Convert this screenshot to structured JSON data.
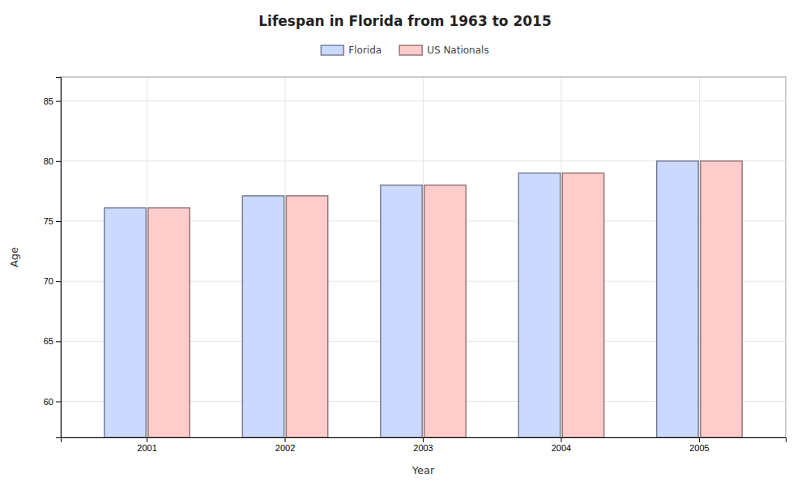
{
  "chart_data": {
    "type": "bar",
    "title": "Lifespan in Florida from 1963 to 2015",
    "xlabel": "Year",
    "ylabel": "Age",
    "categories": [
      "2001",
      "2002",
      "2003",
      "2004",
      "2005"
    ],
    "series": [
      {
        "name": "Florida",
        "color": "#ccd9ff",
        "values": [
          76.1,
          77.1,
          78.0,
          79.0,
          80.0
        ]
      },
      {
        "name": "US Nationals",
        "color": "#ffcccc",
        "values": [
          76.1,
          77.1,
          78.0,
          79.0,
          80.0
        ]
      }
    ],
    "ylim": [
      57,
      87
    ],
    "yticks": [
      60,
      65,
      70,
      75,
      80,
      85
    ],
    "grid": true,
    "legend": "top"
  }
}
